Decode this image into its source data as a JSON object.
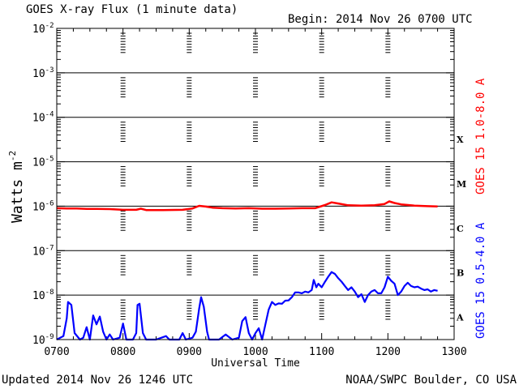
{
  "chart_data": {
    "type": "line",
    "title": "GOES X-ray Flux (1 minute data)",
    "begin_label": "Begin: 2014 Nov 26 0700 UTC",
    "xlabel": "Universal Time",
    "ylabel_main": "Watts m",
    "ylabel_sup": "-2",
    "x_ticks": [
      "0700",
      "0800",
      "0900",
      "1000",
      "1100",
      "1200",
      "1300"
    ],
    "xlim_hours": [
      7,
      13
    ],
    "y_scale": "log",
    "ylim": [
      1e-09,
      0.01
    ],
    "y_tick_bases": [
      "10",
      "10",
      "10",
      "10",
      "10",
      "10",
      "10",
      "10"
    ],
    "y_tick_exps": [
      "-9",
      "-8",
      "-7",
      "-6",
      "-5",
      "-4",
      "-3",
      "-2"
    ],
    "flare_classes": [
      "A",
      "B",
      "C",
      "M",
      "X"
    ],
    "grid": "horizontal per decade",
    "series": [
      {
        "name": "GOES 15 1.0-8.0 A",
        "color": "#ff0000",
        "points": [
          [
            7.0,
            9e-07
          ],
          [
            7.15,
            8.9e-07
          ],
          [
            7.3,
            8.9e-07
          ],
          [
            7.45,
            8.7e-07
          ],
          [
            7.6,
            8.7e-07
          ],
          [
            7.8,
            8.6e-07
          ],
          [
            8.0,
            8.3e-07
          ],
          [
            8.2,
            8.3e-07
          ],
          [
            8.27,
            8.8e-07
          ],
          [
            8.35,
            8.2e-07
          ],
          [
            8.6,
            8.2e-07
          ],
          [
            8.9,
            8.3e-07
          ],
          [
            9.05,
            8.9e-07
          ],
          [
            9.15,
            1.02e-06
          ],
          [
            9.25,
            9.8e-07
          ],
          [
            9.35,
            9.3e-07
          ],
          [
            9.5,
            9e-07
          ],
          [
            9.7,
            8.9e-07
          ],
          [
            9.9,
            9e-07
          ],
          [
            10.1,
            8.8e-07
          ],
          [
            10.3,
            8.8e-07
          ],
          [
            10.5,
            8.9e-07
          ],
          [
            10.7,
            9e-07
          ],
          [
            10.9,
            9e-07
          ],
          [
            11.05,
            1.06e-06
          ],
          [
            11.15,
            1.22e-06
          ],
          [
            11.25,
            1.15e-06
          ],
          [
            11.4,
            1.05e-06
          ],
          [
            11.6,
            1.03e-06
          ],
          [
            11.8,
            1.05e-06
          ],
          [
            11.95,
            1.12e-06
          ],
          [
            12.02,
            1.28e-06
          ],
          [
            12.1,
            1.18e-06
          ],
          [
            12.2,
            1.1e-06
          ],
          [
            12.4,
            1.03e-06
          ],
          [
            12.6,
            1e-06
          ],
          [
            12.75,
            9.9e-07
          ]
        ]
      },
      {
        "name": "GOES 15 0.5-4.0 A",
        "color": "#0000ff",
        "points": [
          [
            7.0,
            1e-09
          ],
          [
            7.1,
            1.2e-09
          ],
          [
            7.15,
            3e-09
          ],
          [
            7.17,
            7e-09
          ],
          [
            7.22,
            6e-09
          ],
          [
            7.27,
            1.4e-09
          ],
          [
            7.35,
            1e-09
          ],
          [
            7.4,
            1.1e-09
          ],
          [
            7.45,
            1.9e-09
          ],
          [
            7.5,
            1e-09
          ],
          [
            7.55,
            3.5e-09
          ],
          [
            7.6,
            2.2e-09
          ],
          [
            7.65,
            3.3e-09
          ],
          [
            7.7,
            1.5e-09
          ],
          [
            7.75,
            1e-09
          ],
          [
            7.8,
            1.3e-09
          ],
          [
            7.85,
            1e-09
          ],
          [
            7.95,
            1.1e-09
          ],
          [
            8.0,
            2.3e-09
          ],
          [
            8.05,
            1e-09
          ],
          [
            8.15,
            1e-09
          ],
          [
            8.2,
            1.4e-09
          ],
          [
            8.22,
            6e-09
          ],
          [
            8.25,
            6.4e-09
          ],
          [
            8.3,
            1.4e-09
          ],
          [
            8.35,
            1e-09
          ],
          [
            8.5,
            1e-09
          ],
          [
            8.65,
            1.2e-09
          ],
          [
            8.7,
            1e-09
          ],
          [
            8.85,
            1e-09
          ],
          [
            8.9,
            1.4e-09
          ],
          [
            8.95,
            1e-09
          ],
          [
            9.05,
            1.1e-09
          ],
          [
            9.1,
            1.5e-09
          ],
          [
            9.15,
            5e-09
          ],
          [
            9.18,
            9e-09
          ],
          [
            9.22,
            5.5e-09
          ],
          [
            9.27,
            1.5e-09
          ],
          [
            9.3,
            1e-09
          ],
          [
            9.45,
            1e-09
          ],
          [
            9.55,
            1.3e-09
          ],
          [
            9.65,
            1e-09
          ],
          [
            9.75,
            1.1e-09
          ],
          [
            9.8,
            2.6e-09
          ],
          [
            9.85,
            3.2e-09
          ],
          [
            9.9,
            1.4e-09
          ],
          [
            9.95,
            1e-09
          ],
          [
            10.0,
            1.4e-09
          ],
          [
            10.05,
            1.8e-09
          ],
          [
            10.1,
            1e-09
          ],
          [
            10.15,
            2.2e-09
          ],
          [
            10.2,
            4.7e-09
          ],
          [
            10.25,
            7e-09
          ],
          [
            10.3,
            6e-09
          ],
          [
            10.35,
            6.5e-09
          ],
          [
            10.4,
            6.4e-09
          ],
          [
            10.45,
            7.5e-09
          ],
          [
            10.5,
            7.6e-09
          ],
          [
            10.55,
            9e-09
          ],
          [
            10.6,
            1.15e-08
          ],
          [
            10.65,
            1.15e-08
          ],
          [
            10.7,
            1.1e-08
          ],
          [
            10.75,
            1.2e-08
          ],
          [
            10.8,
            1.15e-08
          ],
          [
            10.85,
            1.3e-08
          ],
          [
            10.88,
            2.2e-08
          ],
          [
            10.92,
            1.5e-08
          ],
          [
            10.95,
            1.8e-08
          ],
          [
            11.0,
            1.5e-08
          ],
          [
            11.05,
            2e-08
          ],
          [
            11.1,
            2.6e-08
          ],
          [
            11.15,
            3.3e-08
          ],
          [
            11.2,
            3e-08
          ],
          [
            11.25,
            2.4e-08
          ],
          [
            11.3,
            2e-08
          ],
          [
            11.35,
            1.6e-08
          ],
          [
            11.4,
            1.3e-08
          ],
          [
            11.45,
            1.5e-08
          ],
          [
            11.5,
            1.2e-08
          ],
          [
            11.55,
            9e-09
          ],
          [
            11.6,
            1.05e-08
          ],
          [
            11.65,
            7e-09
          ],
          [
            11.7,
            1e-08
          ],
          [
            11.75,
            1.2e-08
          ],
          [
            11.8,
            1.3e-08
          ],
          [
            11.85,
            1.1e-08
          ],
          [
            11.9,
            1.1e-08
          ],
          [
            11.95,
            1.5e-08
          ],
          [
            12.0,
            2.6e-08
          ],
          [
            12.05,
            2.1e-08
          ],
          [
            12.1,
            1.8e-08
          ],
          [
            12.15,
            1e-08
          ],
          [
            12.2,
            1.2e-08
          ],
          [
            12.25,
            1.6e-08
          ],
          [
            12.3,
            1.9e-08
          ],
          [
            12.35,
            1.6e-08
          ],
          [
            12.4,
            1.5e-08
          ],
          [
            12.45,
            1.55e-08
          ],
          [
            12.5,
            1.4e-08
          ],
          [
            12.55,
            1.3e-08
          ],
          [
            12.6,
            1.35e-08
          ],
          [
            12.65,
            1.2e-08
          ],
          [
            12.7,
            1.3e-08
          ],
          [
            12.75,
            1.25e-08
          ]
        ]
      }
    ],
    "updated_label": "Updated 2014 Nov 26 1246 UTC",
    "source_label": "NOAA/SWPC Boulder, CO USA"
  }
}
